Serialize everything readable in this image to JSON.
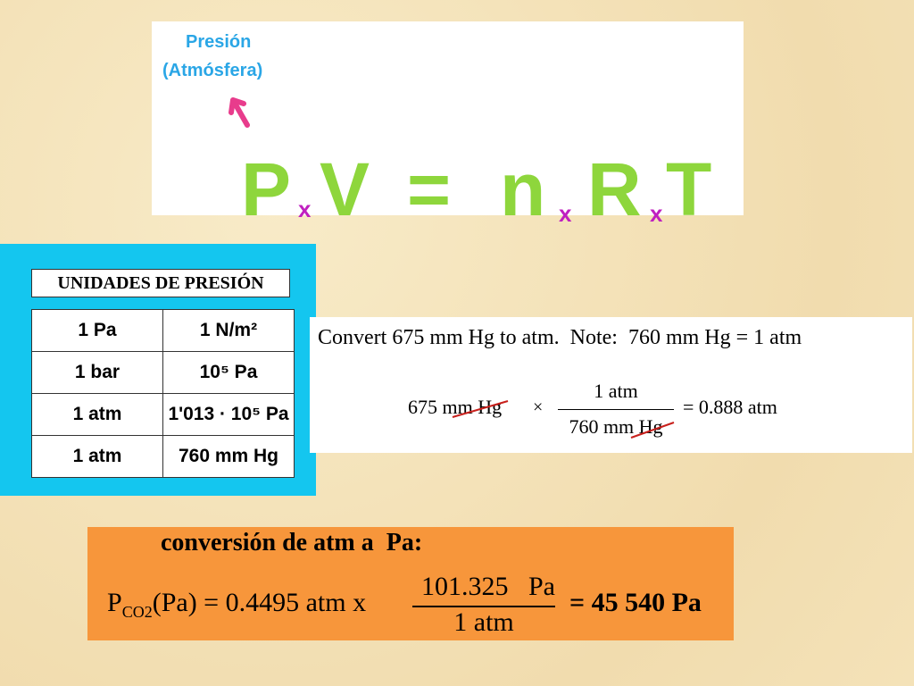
{
  "header": {
    "label": "Presión",
    "sublabel": "(Atmósfera)",
    "equation": [
      "P",
      "x",
      "V",
      "=",
      "n",
      "x",
      "R",
      "x",
      "T"
    ]
  },
  "table": {
    "title": "UNIDADES DE PRESIÓN",
    "rows": [
      [
        "1 Pa",
        "1 N/m²"
      ],
      [
        "1 bar",
        "10⁵ Pa"
      ],
      [
        "1 atm",
        "1'013 · 10⁵ Pa"
      ],
      [
        "1 atm",
        "760 mm Hg"
      ]
    ]
  },
  "example": {
    "statement": "Convert 675 mm Hg to atm.  Note:  760 mm Hg = 1 atm",
    "start": "675 mm Hg",
    "times": "×",
    "numerator": "1 atm",
    "denominator": "760 mm Hg",
    "result": "= 0.888 atm"
  },
  "conversion": {
    "title": "conversión de atm a  Pa:",
    "symbol": "P",
    "subscript": "CO2",
    "left": "(Pa) = 0.4495 atm x",
    "numerator": "101.325   Pa",
    "denominator": "1 atm",
    "result": "= 45 540 Pa"
  }
}
